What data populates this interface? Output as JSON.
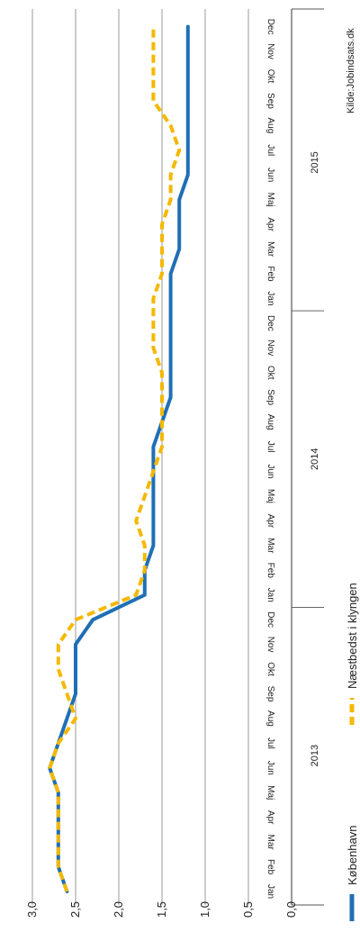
{
  "chart_data": {
    "type": "line",
    "title": "",
    "xlabel": "",
    "ylabel": "",
    "ylim": [
      0,
      3
    ],
    "yticks": [
      "0,0",
      "0,5",
      "1,0",
      "1,5",
      "2,0",
      "2,5",
      "3,0"
    ],
    "grid": true,
    "legend_position": "bottom",
    "years": [
      "2013",
      "2014",
      "2015"
    ],
    "months": [
      "Jan",
      "Feb",
      "Mar",
      "Apr",
      "Maj",
      "Jun",
      "Jul",
      "Aug",
      "Sep",
      "Okt",
      "Nov",
      "Dec",
      "Jan",
      "Feb",
      "Mar",
      "Apr",
      "Maj",
      "Jun",
      "Jul",
      "Aug",
      "Sep",
      "Okt",
      "Nov",
      "Dec",
      "Jan",
      "Feb",
      "Mar",
      "Apr",
      "Maj",
      "Jun",
      "Jul",
      "Aug",
      "Sep",
      "Okt",
      "Nov",
      "Dec"
    ],
    "series": [
      {
        "name": "København",
        "color": "#1f6fb5",
        "style": "solid",
        "values": [
          2.6,
          2.7,
          2.7,
          2.7,
          2.7,
          2.8,
          2.7,
          2.6,
          2.5,
          2.5,
          2.5,
          2.3,
          1.7,
          1.7,
          1.6,
          1.6,
          1.6,
          1.6,
          1.6,
          1.5,
          1.4,
          1.4,
          1.4,
          1.4,
          1.4,
          1.4,
          1.3,
          1.3,
          1.3,
          1.2,
          1.2,
          1.2,
          1.2,
          1.2,
          1.2,
          1.2
        ]
      },
      {
        "name": "Næstbedst i klyngen",
        "color": "#f5b800",
        "style": "dashed",
        "values": [
          2.6,
          2.7,
          2.7,
          2.7,
          2.7,
          2.8,
          2.7,
          2.5,
          2.6,
          2.7,
          2.7,
          2.5,
          1.8,
          1.7,
          1.7,
          1.8,
          1.7,
          1.6,
          1.5,
          1.5,
          1.5,
          1.5,
          1.6,
          1.6,
          1.6,
          1.5,
          1.5,
          1.5,
          1.4,
          1.4,
          1.3,
          1.4,
          1.6,
          1.6,
          1.6,
          1.6
        ]
      }
    ]
  },
  "source": "Kilde:Jobindsats.dk"
}
